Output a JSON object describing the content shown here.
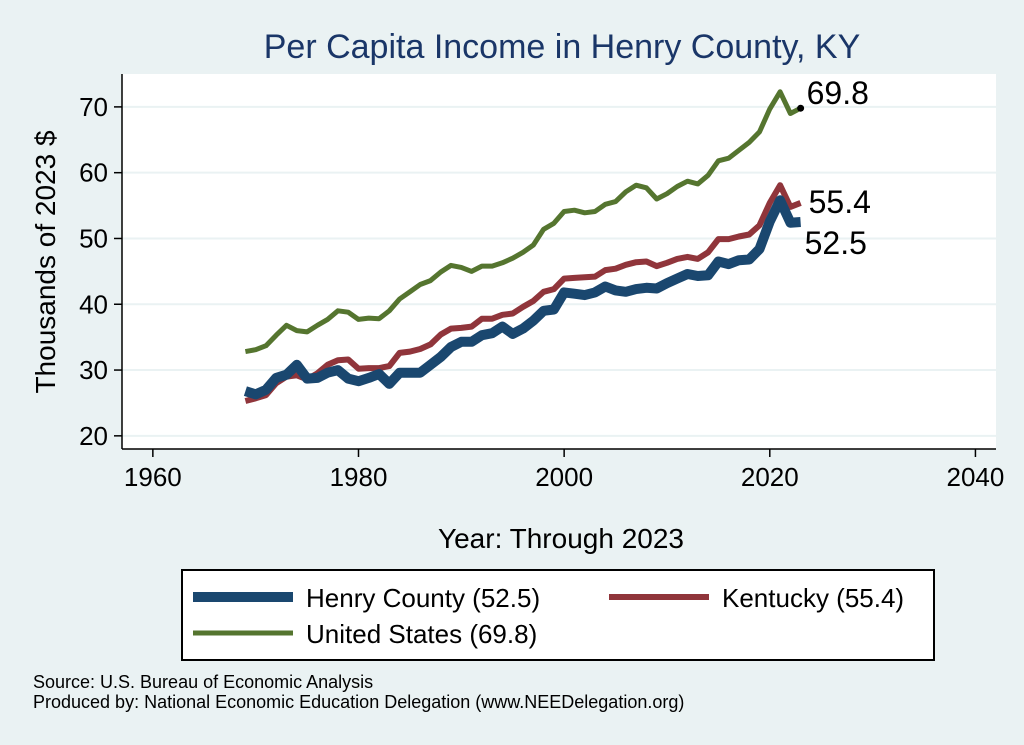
{
  "chart_data": {
    "type": "line",
    "title": "Per Capita Income in Henry County, KY",
    "xlabel": "Year: Through 2023",
    "ylabel": "Thousands of 2023 $",
    "xlim": [
      1957,
      2042
    ],
    "ylim": [
      18,
      75
    ],
    "xticks": [
      1960,
      1980,
      2000,
      2020,
      2040
    ],
    "yticks": [
      20,
      30,
      40,
      50,
      60,
      70
    ],
    "grid": true,
    "series": [
      {
        "name": "Henry County",
        "legend": "Henry County (52.5)",
        "end_label": "52.5",
        "color": "#1a476f",
        "width": 10,
        "x": [
          1969,
          1970,
          1971,
          1972,
          1973,
          1974,
          1975,
          1976,
          1977,
          1978,
          1979,
          1980,
          1981,
          1982,
          1983,
          1984,
          1985,
          1986,
          1987,
          1988,
          1989,
          1990,
          1991,
          1992,
          1993,
          1994,
          1995,
          1996,
          1997,
          1998,
          1999,
          2000,
          2001,
          2002,
          2003,
          2004,
          2005,
          2006,
          2007,
          2008,
          2009,
          2010,
          2011,
          2012,
          2013,
          2014,
          2015,
          2016,
          2017,
          2018,
          2019,
          2020,
          2021,
          2022,
          2023
        ],
        "y": [
          26.8,
          26.3,
          27.0,
          28.8,
          29.3,
          30.8,
          28.7,
          28.8,
          29.6,
          30.0,
          28.7,
          28.3,
          28.8,
          29.4,
          27.9,
          29.6,
          29.6,
          29.6,
          30.8,
          32.0,
          33.5,
          34.3,
          34.3,
          35.3,
          35.6,
          36.6,
          35.5,
          36.3,
          37.5,
          39.0,
          39.2,
          41.8,
          41.6,
          41.4,
          41.8,
          42.7,
          42.1,
          41.9,
          42.3,
          42.5,
          42.4,
          43.2,
          43.9,
          44.6,
          44.3,
          44.4,
          46.5,
          46.1,
          46.7,
          46.8,
          48.4,
          52.6,
          55.8,
          52.4,
          52.5
        ]
      },
      {
        "name": "Kentucky",
        "legend": "Kentucky (55.4)",
        "end_label": "55.4",
        "color": "#90353b",
        "width": 6,
        "x": [
          1969,
          1970,
          1971,
          1972,
          1973,
          1974,
          1975,
          1976,
          1977,
          1978,
          1979,
          1980,
          1981,
          1982,
          1983,
          1984,
          1985,
          1986,
          1987,
          1988,
          1989,
          1990,
          1991,
          1992,
          1993,
          1994,
          1995,
          1996,
          1997,
          1998,
          1999,
          2000,
          2001,
          2002,
          2003,
          2004,
          2005,
          2006,
          2007,
          2008,
          2009,
          2010,
          2011,
          2012,
          2013,
          2014,
          2015,
          2016,
          2017,
          2018,
          2019,
          2020,
          2021,
          2022,
          2023
        ],
        "y": [
          25.3,
          25.7,
          26.2,
          28.0,
          29.0,
          29.2,
          28.6,
          29.5,
          30.8,
          31.5,
          31.6,
          30.2,
          30.3,
          30.3,
          30.6,
          32.6,
          32.8,
          33.2,
          33.9,
          35.4,
          36.3,
          36.4,
          36.6,
          37.8,
          37.8,
          38.4,
          38.6,
          39.6,
          40.5,
          41.9,
          42.3,
          43.9,
          44.0,
          44.1,
          44.2,
          45.2,
          45.4,
          46.0,
          46.4,
          46.5,
          45.8,
          46.3,
          46.9,
          47.2,
          46.9,
          47.9,
          49.9,
          49.9,
          50.3,
          50.6,
          52.0,
          55.4,
          58.1,
          54.8,
          55.4
        ]
      },
      {
        "name": "United States",
        "legend": "United States (69.8)",
        "end_label": "69.8",
        "color": "#55752f",
        "width": 5,
        "x": [
          1969,
          1970,
          1971,
          1972,
          1973,
          1974,
          1975,
          1976,
          1977,
          1978,
          1979,
          1980,
          1981,
          1982,
          1983,
          1984,
          1985,
          1986,
          1987,
          1988,
          1989,
          1990,
          1991,
          1992,
          1993,
          1994,
          1995,
          1996,
          1997,
          1998,
          1999,
          2000,
          2001,
          2002,
          2003,
          2004,
          2005,
          2006,
          2007,
          2008,
          2009,
          2010,
          2011,
          2012,
          2013,
          2014,
          2015,
          2016,
          2017,
          2018,
          2019,
          2020,
          2021,
          2022,
          2023
        ],
        "y": [
          32.8,
          33.1,
          33.7,
          35.3,
          36.8,
          36.0,
          35.8,
          36.8,
          37.7,
          39.0,
          38.8,
          37.7,
          37.9,
          37.8,
          39.0,
          40.8,
          41.9,
          43.0,
          43.6,
          44.9,
          45.9,
          45.6,
          45.0,
          45.8,
          45.8,
          46.3,
          47.0,
          47.9,
          49.0,
          51.4,
          52.3,
          54.1,
          54.3,
          53.9,
          54.1,
          55.2,
          55.6,
          57.1,
          58.1,
          57.7,
          56.0,
          56.8,
          57.9,
          58.7,
          58.3,
          59.6,
          61.8,
          62.2,
          63.4,
          64.6,
          66.2,
          69.7,
          72.3,
          69.0,
          69.8
        ]
      }
    ],
    "legend_position": "bottom"
  },
  "footer": {
    "source": "Source: U.S. Bureau of Economic Analysis",
    "produced_by": "Produced by: National Economic Education Delegation (www.NEEDelegation.org)"
  }
}
